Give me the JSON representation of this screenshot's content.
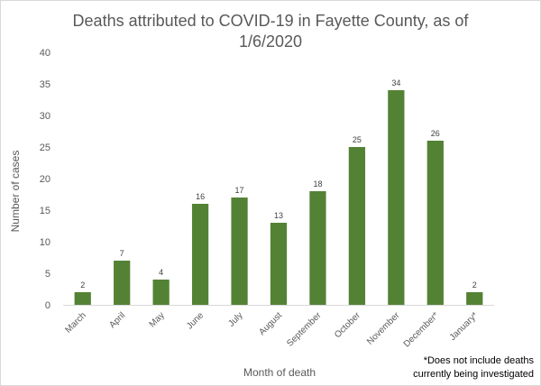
{
  "chart_data": {
    "type": "bar",
    "title_line1": "Deaths attributed to COVID-19 in Fayette County, as of",
    "title_line2": "1/6/2020",
    "xlabel": "Month of death",
    "ylabel": "Number of cases",
    "categories": [
      "March",
      "April",
      "May",
      "June",
      "July",
      "August",
      "September",
      "October",
      "November",
      "December*",
      "January*"
    ],
    "values": [
      2,
      7,
      4,
      16,
      17,
      13,
      18,
      25,
      34,
      26,
      2
    ],
    "ylim": [
      0,
      40
    ],
    "yticks": [
      0,
      5,
      10,
      15,
      20,
      25,
      30,
      35,
      40
    ],
    "grid": false,
    "bar_color": "#548235",
    "data_labels": true
  },
  "footnote": {
    "line1": "*Does not include deaths",
    "line2": "currently being investigated"
  }
}
